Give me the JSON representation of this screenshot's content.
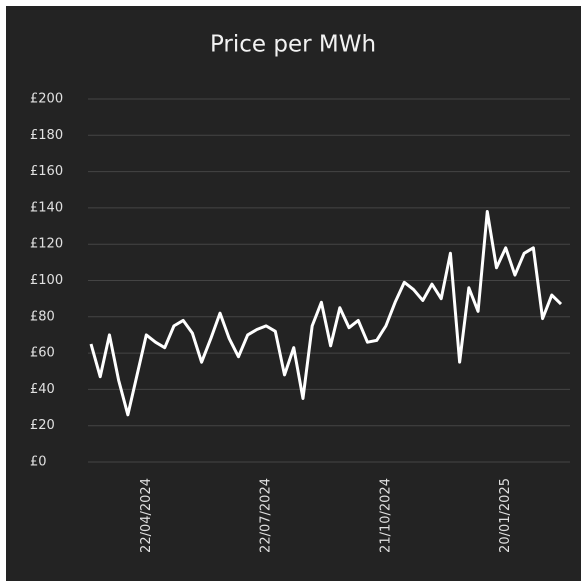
{
  "chart_data": {
    "type": "line",
    "title": "Price per MWh",
    "categories": [
      null,
      null,
      null,
      null,
      null,
      null,
      "22/04/2024",
      null,
      null,
      null,
      null,
      null,
      null,
      null,
      null,
      null,
      null,
      null,
      null,
      "22/07/2024",
      null,
      null,
      null,
      null,
      null,
      null,
      null,
      null,
      null,
      null,
      null,
      null,
      "21/10/2024",
      null,
      null,
      null,
      null,
      null,
      null,
      null,
      null,
      null,
      null,
      null,
      null,
      "20/01/2025",
      null,
      null,
      null,
      null,
      null,
      null
    ],
    "series": [
      {
        "name": "Price",
        "color": "#ffffff",
        "values": [
          65,
          47,
          70,
          45,
          26,
          48,
          70,
          66,
          63,
          75,
          78,
          71,
          55,
          68,
          82,
          68,
          58,
          70,
          73,
          75,
          72,
          48,
          63,
          35,
          75,
          88,
          64,
          85,
          74,
          78,
          66,
          67,
          75,
          88,
          99,
          95,
          89,
          98,
          90,
          115,
          55,
          96,
          83,
          138,
          107,
          118,
          103,
          115,
          118,
          79,
          92,
          87
        ]
      }
    ],
    "ylim": [
      0,
      200
    ],
    "yticks": [
      {
        "value": 0,
        "label": "£0"
      },
      {
        "value": 20,
        "label": "£20"
      },
      {
        "value": 40,
        "label": "£40"
      },
      {
        "value": 60,
        "label": "£60"
      },
      {
        "value": 80,
        "label": "£80"
      },
      {
        "value": 100,
        "label": "£100"
      },
      {
        "value": 120,
        "label": "£120"
      },
      {
        "value": 140,
        "label": "£140"
      },
      {
        "value": 160,
        "label": "£160"
      },
      {
        "value": 180,
        "label": "£180"
      },
      {
        "value": 200,
        "label": "£200"
      }
    ],
    "grid": true,
    "background": "#232323"
  }
}
